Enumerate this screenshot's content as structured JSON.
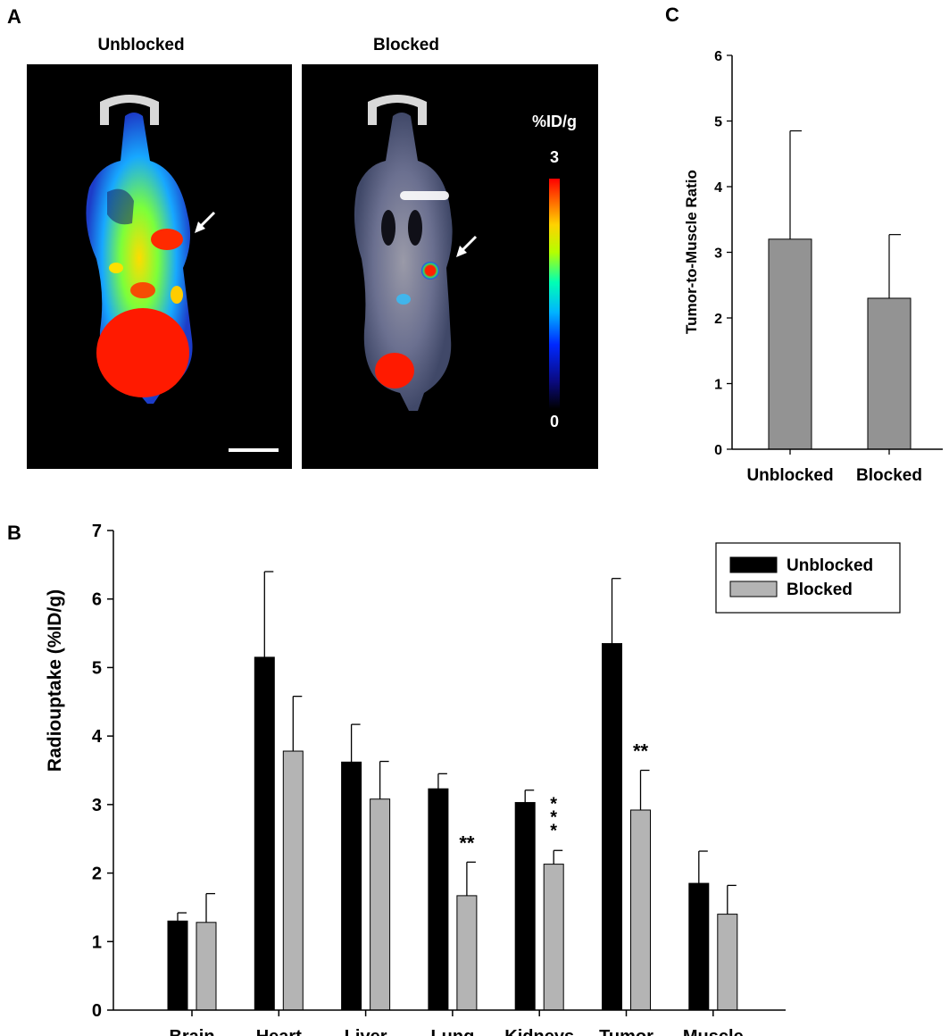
{
  "panels": {
    "a": {
      "label": "A"
    },
    "b": {
      "label": "B"
    },
    "c": {
      "label": "C"
    }
  },
  "pet": {
    "unblocked_title": "Unblocked",
    "blocked_title": "Blocked",
    "colorbar": {
      "unit": "%ID/g",
      "max_label": "3",
      "min_label": "0"
    },
    "colors": {
      "background": "#000000",
      "hot": "#ff1a00",
      "arrow": "#ffffff"
    }
  },
  "chart_data": [
    {
      "id": "B",
      "type": "bar",
      "title": "",
      "xlabel": "",
      "ylabel": "Radiouptake (%ID/g)",
      "ylim": [
        0,
        7
      ],
      "yticks": [
        "0",
        "1",
        "2",
        "3",
        "4",
        "5",
        "6",
        "7"
      ],
      "categories": [
        "Brain",
        "Heart",
        "Liver",
        "Lung",
        "Kidneys",
        "Tumor",
        "Muscle"
      ],
      "series": [
        {
          "name": "Unblocked",
          "color": "#000000",
          "values": [
            1.3,
            5.15,
            3.62,
            3.23,
            3.03,
            5.35,
            1.85
          ],
          "errors": [
            0.12,
            1.25,
            0.55,
            0.22,
            0.18,
            0.95,
            0.47
          ]
        },
        {
          "name": "Blocked",
          "color": "#b4b4b4",
          "values": [
            1.28,
            3.78,
            3.08,
            1.67,
            2.13,
            2.92,
            1.4
          ],
          "errors": [
            0.42,
            0.8,
            0.55,
            0.49,
            0.2,
            0.58,
            0.42
          ]
        }
      ],
      "significance": [
        {
          "category": "Lung",
          "text": "**"
        },
        {
          "category": "Kidneys",
          "text": "***"
        },
        {
          "category": "Tumor",
          "text": "**"
        }
      ],
      "legend_position": "top-right"
    },
    {
      "id": "C",
      "type": "bar",
      "title": "",
      "xlabel": "",
      "ylabel": "Tumor-to-Muscle Ratio",
      "ylim": [
        0,
        6
      ],
      "yticks": [
        "0",
        "1",
        "2",
        "3",
        "4",
        "5",
        "6"
      ],
      "categories": [
        "Unblocked",
        "Blocked"
      ],
      "values": [
        3.2,
        2.3
      ],
      "errors": [
        1.65,
        0.97
      ],
      "color": "#939393"
    }
  ]
}
